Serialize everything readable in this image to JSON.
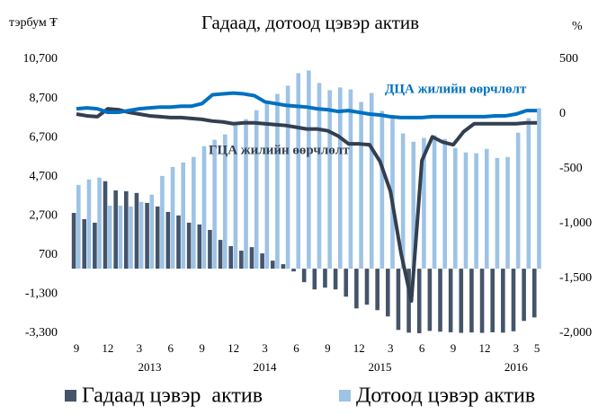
{
  "chart_data": {
    "type": "bar_line",
    "title": "Гадаад, дотоод цэвэр актив",
    "y_label": "тэрбум ₮",
    "y2_label": "%",
    "categories": [
      "9",
      null,
      null,
      "12",
      null,
      null,
      "3",
      null,
      null,
      "6",
      null,
      null,
      "9",
      null,
      null,
      "12",
      null,
      null,
      "3",
      null,
      null,
      "6",
      null,
      null,
      "9",
      null,
      null,
      "12",
      null,
      null,
      "3",
      null,
      null,
      "6",
      null,
      null,
      "9",
      null,
      null,
      "12",
      null,
      null,
      "3",
      null,
      "5"
    ],
    "year_labels": [
      null,
      null,
      null,
      null,
      null,
      null,
      null,
      "2013",
      null,
      null,
      null,
      null,
      null,
      null,
      null,
      null,
      null,
      null,
      "2014",
      null,
      null,
      null,
      null,
      null,
      null,
      null,
      null,
      null,
      null,
      "2015",
      null,
      null,
      null,
      null,
      null,
      null,
      null,
      null,
      null,
      null,
      null,
      null,
      "2016",
      null,
      null
    ],
    "series": [
      {
        "name": "Гадаад цэвэр  актив",
        "type": "bar",
        "color": "#44546a",
        "values": [
          2850,
          2530,
          2350,
          4470,
          4000,
          3960,
          3870,
          3360,
          3180,
          2900,
          2720,
          2350,
          2260,
          1980,
          1470,
          1150,
          920,
          1100,
          780,
          410,
          230,
          -140,
          -690,
          -1060,
          -970,
          -1060,
          -1430,
          -2030,
          -1840,
          -2120,
          -2440,
          -3130,
          -3270,
          -3300,
          -3180,
          -3220,
          -3250,
          -3280,
          -3260,
          -3280,
          -3250,
          -3270,
          -3200,
          -2670,
          -2490
        ]
      },
      {
        "name": "Дотоод цэвэр актив",
        "type": "bar",
        "color": "#9dc3e6",
        "values": [
          4280,
          4560,
          4650,
          3220,
          3220,
          3180,
          3410,
          3780,
          4740,
          5200,
          5430,
          5710,
          6260,
          6590,
          6860,
          7320,
          7640,
          8100,
          8570,
          8930,
          9350,
          9990,
          10130,
          9490,
          9120,
          9260,
          9160,
          8520,
          8980,
          8060,
          7740,
          6910,
          6490,
          6680,
          6820,
          6630,
          6170,
          5940,
          5900,
          6120,
          5660,
          5710,
          6950,
          7690,
          8200
        ]
      },
      {
        "name": "ГЦА жилийн өөрчлөлт",
        "type": "line",
        "axis": "y2",
        "color": "#333f50",
        "values": [
          0,
          -16,
          -24,
          48,
          40,
          16,
          0,
          -16,
          -24,
          -32,
          -32,
          -40,
          -48,
          -64,
          -72,
          -88,
          -80,
          -80,
          -88,
          -96,
          -104,
          -120,
          -136,
          -136,
          -152,
          -200,
          -272,
          -272,
          -280,
          -432,
          -705,
          -1265,
          -1705,
          -425,
          -208,
          -256,
          -280,
          -160,
          -88,
          -88,
          -88,
          -88,
          -88,
          -80,
          -80
        ]
      },
      {
        "name": "ДЦА жилийн өөрчлөлт",
        "type": "line",
        "axis": "y2",
        "color": "#0070c0",
        "values": [
          48,
          56,
          48,
          16,
          16,
          32,
          48,
          56,
          64,
          64,
          72,
          72,
          96,
          176,
          184,
          192,
          184,
          168,
          112,
          96,
          80,
          72,
          64,
          48,
          40,
          24,
          32,
          16,
          0,
          -8,
          -24,
          -32,
          -32,
          -32,
          -24,
          -24,
          -24,
          -24,
          -24,
          -24,
          -16,
          -16,
          0,
          32,
          32
        ]
      }
    ],
    "ylim": [
      -3300,
      10700
    ],
    "yticks": [
      {
        "value": -3300,
        "label": "-3,300"
      },
      {
        "value": -1300,
        "label": "-1,300"
      },
      700,
      {
        "value": 2700,
        "label": "2,700"
      },
      {
        "value": 4700,
        "label": "4,700"
      },
      {
        "value": 6700,
        "label": "6,700"
      },
      {
        "value": 8700,
        "label": "8,700"
      },
      {
        "value": 10700,
        "label": "10,700"
      }
    ],
    "y2lim": [
      -2000,
      500
    ],
    "y2ticks": [
      {
        "value": -2000,
        "label": "-2,000"
      },
      {
        "value": -1500,
        "label": "-1,500"
      },
      {
        "value": -1000,
        "label": "-1,000"
      },
      -500,
      0,
      500
    ],
    "grid": false
  }
}
